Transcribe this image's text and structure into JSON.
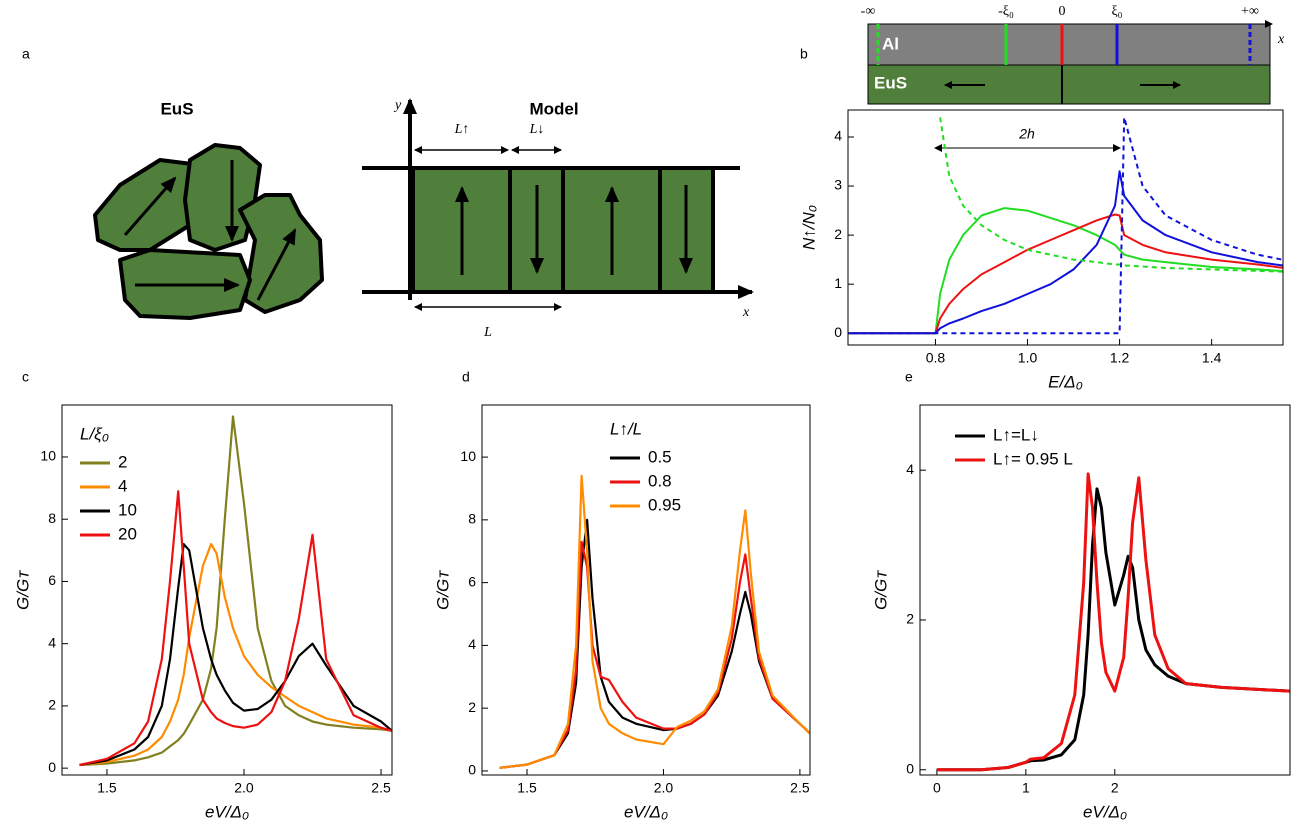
{
  "panel_labels": [
    "a",
    "b",
    "c",
    "d",
    "e"
  ],
  "figure_a": {
    "grain_title": "EuS",
    "model_title": "Model",
    "y_axis": "y",
    "x_axis": "x",
    "l_up": "L↑",
    "l_down": "L↓",
    "l": "L"
  },
  "figure_b_strip": {
    "ticks": [
      "-∞",
      "-ξ₀",
      "0",
      "ξ₀",
      "+∞"
    ],
    "x_axis": "x",
    "top_layer": "Al",
    "bottom_layer": "EuS"
  },
  "chart_data": [
    {
      "type": "line",
      "x_label": "E/Δ₀",
      "y_label": "N↑/N₀",
      "annotation": "2h",
      "xlim": [
        0.61,
        1.555
      ],
      "ylim": [
        -0.24,
        4.55
      ],
      "xticks": [
        0.8,
        {
          "value": 1,
          "label": "1.0"
        },
        1.2,
        1.4
      ],
      "yticks": [
        0,
        1,
        2,
        3,
        4
      ],
      "x": [
        0.6,
        0.8,
        0.81,
        0.83,
        0.86,
        0.9,
        0.95,
        1.0,
        1.05,
        1.1,
        1.15,
        1.19,
        1.2,
        1.21,
        1.25,
        1.3,
        1.4,
        1.5,
        1.58
      ],
      "series": [
        {
          "color": "#22dd22",
          "dashed": false,
          "values": [
            0,
            0,
            0.8,
            1.5,
            2.0,
            2.4,
            2.55,
            2.5,
            2.35,
            2.2,
            2.0,
            1.8,
            1.7,
            1.6,
            1.5,
            1.45,
            1.35,
            1.3,
            1.25
          ]
        },
        {
          "color": "#ee1111",
          "dashed": false,
          "values": [
            0,
            0,
            0.3,
            0.6,
            0.9,
            1.2,
            1.45,
            1.7,
            1.9,
            2.1,
            2.3,
            2.42,
            2.4,
            2.0,
            1.8,
            1.65,
            1.5,
            1.4,
            1.3
          ]
        },
        {
          "color": "#1111dd",
          "dashed": false,
          "values": [
            0,
            0,
            0.1,
            0.2,
            0.3,
            0.45,
            0.6,
            0.8,
            1.0,
            1.3,
            1.8,
            2.6,
            3.3,
            2.8,
            2.3,
            2.0,
            1.65,
            1.45,
            1.35
          ]
        },
        {
          "color": "#22dd22",
          "dashed": true,
          "values": [
            null,
            null,
            4.4,
            3.2,
            2.6,
            2.2,
            1.9,
            1.7,
            1.6,
            1.5,
            1.45,
            1.4,
            1.4,
            1.38,
            1.36,
            1.33,
            1.3,
            1.27,
            1.25
          ]
        },
        {
          "color": "#1111dd",
          "dashed": true,
          "values": [
            0,
            0,
            0,
            0,
            0,
            0,
            0,
            0,
            0,
            0,
            0,
            0,
            0,
            4.4,
            3.0,
            2.4,
            1.9,
            1.6,
            1.45
          ]
        }
      ]
    },
    {
      "type": "line",
      "x_label": "eV/Δ₀",
      "y_label": "G/Gᴛ",
      "legend_title": "L/ξ₀",
      "legend": "upper left",
      "xlim": [
        1.336,
        2.54
      ],
      "ylim": [
        -0.22,
        11.67
      ],
      "xticks": [
        1.5,
        {
          "value": 2,
          "label": "2.0"
        },
        2.5
      ],
      "yticks": [
        0,
        2,
        4,
        6,
        8,
        10
      ],
      "x": [
        1.4,
        1.5,
        1.6,
        1.65,
        1.7,
        1.73,
        1.76,
        1.78,
        1.8,
        1.85,
        1.88,
        1.9,
        1.93,
        1.96,
        2.0,
        2.05,
        2.1,
        2.15,
        2.2,
        2.25,
        2.3,
        2.4,
        2.5,
        2.54
      ],
      "series": [
        {
          "name": "2",
          "color": "#808020",
          "values": [
            0.1,
            0.15,
            0.25,
            0.35,
            0.5,
            0.7,
            0.9,
            1.1,
            1.4,
            2.2,
            3.2,
            4.5,
            8,
            11.3,
            8.5,
            4.5,
            2.8,
            2.0,
            1.7,
            1.5,
            1.4,
            1.3,
            1.25,
            1.2
          ]
        },
        {
          "name": "4",
          "color": "#ff8c00",
          "values": [
            0.1,
            0.2,
            0.4,
            0.6,
            1.0,
            1.5,
            2.2,
            3.0,
            4.2,
            6.5,
            7.2,
            6.9,
            5.5,
            4.5,
            3.6,
            3.0,
            2.6,
            2.3,
            2.0,
            1.8,
            1.6,
            1.4,
            1.3,
            1.2
          ]
        },
        {
          "name": "10",
          "color": "#000000",
          "values": [
            0.1,
            0.25,
            0.6,
            1.0,
            2.0,
            3.5,
            5.8,
            7.2,
            7.0,
            4.5,
            3.5,
            3.0,
            2.5,
            2.1,
            1.85,
            1.9,
            2.2,
            2.8,
            3.6,
            4.0,
            3.3,
            2.0,
            1.5,
            1.2
          ]
        },
        {
          "name": "20",
          "color": "#ee1111",
          "values": [
            0.1,
            0.3,
            0.8,
            1.5,
            3.5,
            6.0,
            8.9,
            6.5,
            4.0,
            2.2,
            1.8,
            1.6,
            1.45,
            1.35,
            1.3,
            1.4,
            1.8,
            2.8,
            4.8,
            7.5,
            3.5,
            1.7,
            1.3,
            1.2
          ]
        }
      ]
    },
    {
      "type": "line",
      "x_label": "eV/Δ₀",
      "y_label": "G/Gᴛ",
      "legend_title": "L↑/L",
      "legend": "upper left",
      "xlim": [
        1.335,
        2.537
      ],
      "ylim": [
        -0.13,
        11.66
      ],
      "xticks": [
        1.5,
        {
          "value": 2,
          "label": "2.0"
        },
        2.5
      ],
      "yticks": [
        0,
        2,
        4,
        6,
        8,
        10
      ],
      "x": [
        1.4,
        1.5,
        1.6,
        1.65,
        1.68,
        1.7,
        1.72,
        1.74,
        1.77,
        1.8,
        1.85,
        1.9,
        2.0,
        2.05,
        2.1,
        2.15,
        2.2,
        2.25,
        2.28,
        2.3,
        2.32,
        2.35,
        2.4,
        2.5,
        2.537
      ],
      "series": [
        {
          "name": "0.5",
          "color": "#000000",
          "values": [
            0.1,
            0.2,
            0.5,
            1.2,
            2.8,
            6.5,
            8.0,
            5.5,
            3.0,
            2.2,
            1.7,
            1.5,
            1.3,
            1.35,
            1.5,
            1.8,
            2.4,
            3.8,
            5.0,
            5.7,
            5.0,
            3.5,
            2.3,
            1.5,
            1.2
          ]
        },
        {
          "name": "0.8",
          "color": "#ee1111",
          "values": [
            0.1,
            0.2,
            0.5,
            1.3,
            3.2,
            7.3,
            6.5,
            4.0,
            3.0,
            2.9,
            2.2,
            1.7,
            1.35,
            1.35,
            1.5,
            1.8,
            2.5,
            4.2,
            6.0,
            6.9,
            5.5,
            3.6,
            2.3,
            1.5,
            1.2
          ]
        },
        {
          "name": "0.95",
          "color": "#ff8c00",
          "values": [
            0.1,
            0.2,
            0.5,
            1.5,
            4.0,
            9.4,
            7.0,
            3.5,
            2.0,
            1.5,
            1.2,
            1.0,
            0.85,
            1.4,
            1.6,
            1.9,
            2.6,
            4.6,
            7.0,
            8.3,
            6.3,
            3.8,
            2.4,
            1.5,
            1.2
          ]
        }
      ]
    },
    {
      "type": "line",
      "x_label": "eV/Δ₀",
      "y_label": "G/Gᴛ",
      "legend": "upper left",
      "xlim": [
        -0.19,
        3.97
      ],
      "ylim": [
        -0.07,
        4.87
      ],
      "xticks": [
        0,
        1,
        2
      ],
      "yticks": [
        0,
        2,
        4
      ],
      "x": [
        0,
        0.5,
        0.8,
        1.0,
        1.05,
        1.2,
        1.4,
        1.55,
        1.65,
        1.7,
        1.75,
        1.8,
        1.85,
        1.9,
        2.0,
        2.1,
        2.15,
        2.2,
        2.27,
        2.35,
        2.45,
        2.6,
        2.8,
        3.2,
        3.97
      ],
      "series": [
        {
          "name": "L↑=L↓",
          "color": "#000000",
          "values": [
            0,
            0,
            0.03,
            0.1,
            0.12,
            0.13,
            0.2,
            0.4,
            1.0,
            1.8,
            3.0,
            3.75,
            3.5,
            2.9,
            2.2,
            2.6,
            2.85,
            2.7,
            2.0,
            1.6,
            1.4,
            1.25,
            1.15,
            1.1,
            1.05
          ]
        },
        {
          "name": "L↑= 0.95 L",
          "color": "#ee1111",
          "values": [
            0,
            0,
            0.03,
            0.1,
            0.14,
            0.16,
            0.35,
            1.0,
            2.5,
            3.95,
            3.5,
            2.5,
            1.7,
            1.3,
            1.05,
            1.5,
            2.3,
            3.3,
            3.9,
            2.8,
            1.8,
            1.35,
            1.15,
            1.1,
            1.05
          ]
        }
      ]
    }
  ]
}
